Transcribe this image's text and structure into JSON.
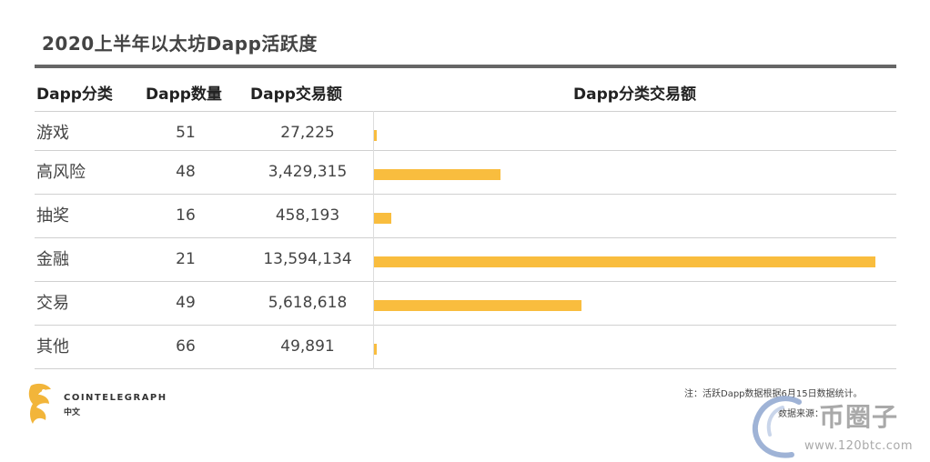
{
  "title": "2020上半年以太坊Dapp活跃度",
  "columns": {
    "category": "Dapp分类",
    "count": "Dapp数量",
    "volume": "Dapp交易额",
    "bar": "Dapp分类交易额"
  },
  "rows": [
    {
      "category": "游戏",
      "count": "51",
      "volume": "27,225"
    },
    {
      "category": "高风险",
      "count": "48",
      "volume": "3,429,315"
    },
    {
      "category": "抽奖",
      "count": "16",
      "volume": "458,193"
    },
    {
      "category": "金融",
      "count": "21",
      "volume": "13,594,134"
    },
    {
      "category": "交易",
      "count": "49",
      "volume": "5,618,618"
    },
    {
      "category": "其他",
      "count": "66",
      "volume": "49,891"
    }
  ],
  "chart_data": {
    "type": "bar",
    "orientation": "horizontal",
    "title": "Dapp分类交易额",
    "categories": [
      "游戏",
      "高风险",
      "抽奖",
      "金融",
      "交易",
      "其他"
    ],
    "values": [
      27225,
      3429315,
      458193,
      13594134,
      5618618,
      49891
    ],
    "xlim": [
      0,
      13594134
    ],
    "color": "#f9bd3e"
  },
  "brand": {
    "name": "COINTELEGRAPH",
    "sub": "中文"
  },
  "note": "注：活跃Dapp数据根据6月15日数据统计。",
  "source": "数据来源：",
  "watermark": {
    "text": "币圈子",
    "url": "www.120btc.com"
  }
}
